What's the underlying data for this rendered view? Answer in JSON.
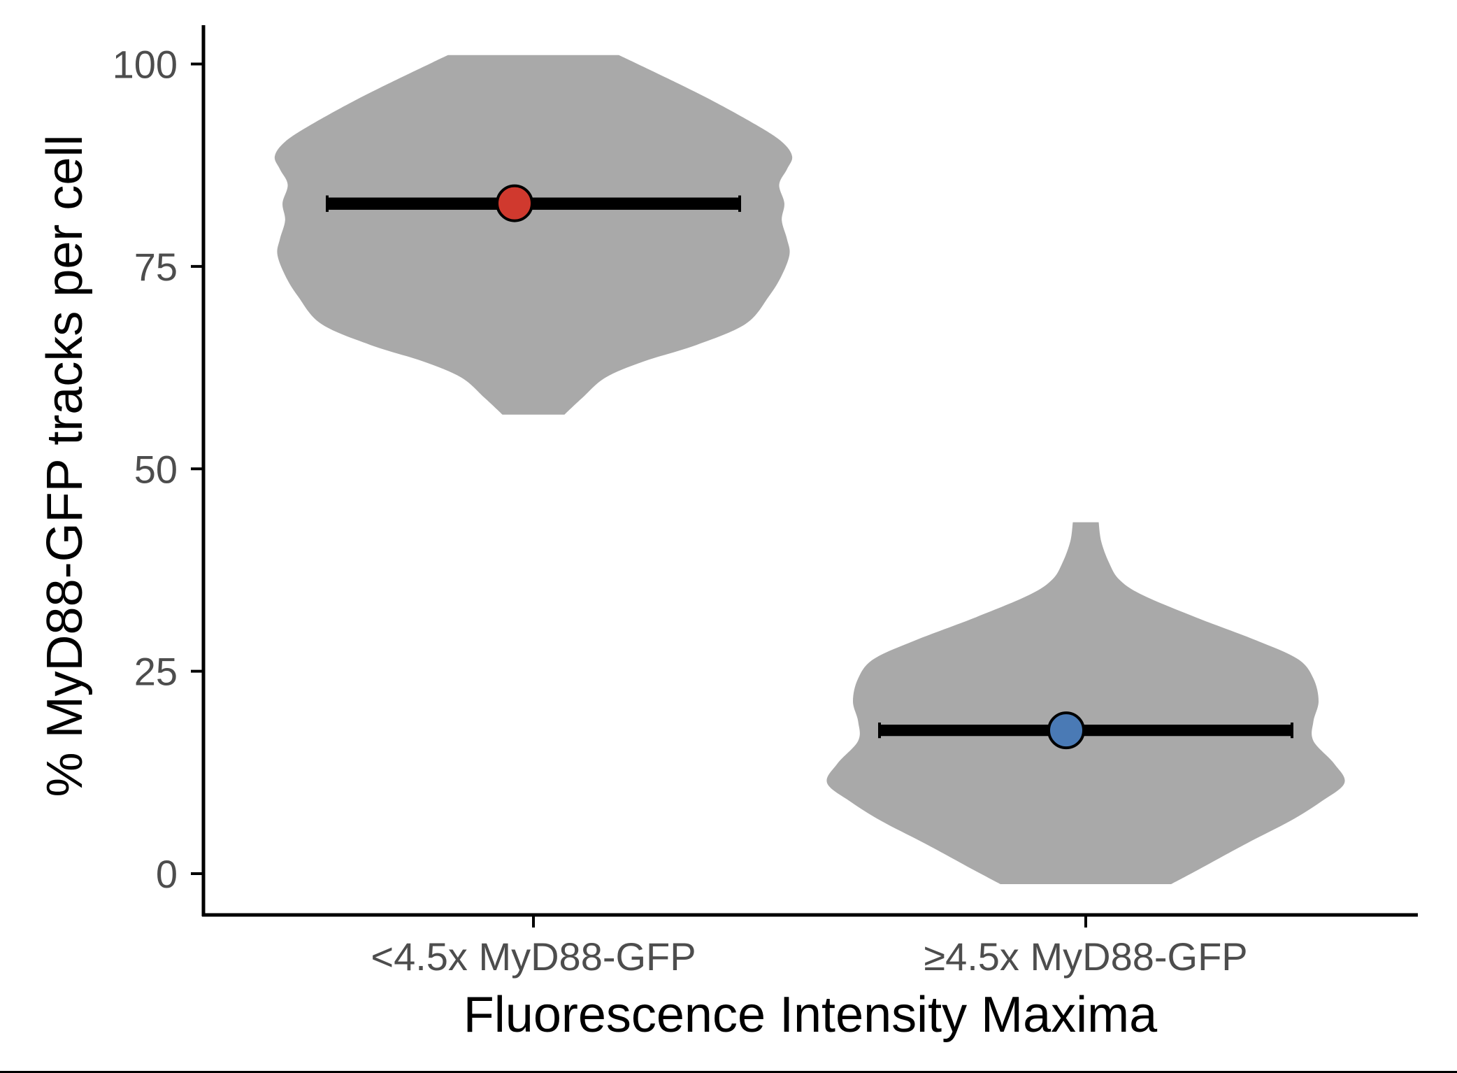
{
  "chart_data": {
    "type": "violin",
    "xlabel": "Fluorescence Intensity Maxima",
    "ylabel": "% MyD88-GFP tracks per cell",
    "ylim": [
      -10,
      105
    ],
    "yticks": [
      0,
      25,
      50,
      75,
      100
    ],
    "categories": [
      "<4.5x MyD88-GFP",
      "≥4.5x MyD88-GFP"
    ],
    "grid": false,
    "violins": [
      {
        "category": "<4.5x MyD88-GFP",
        "min": 56.7,
        "max": 101.1,
        "mean": 82.8,
        "error_low": 82.6,
        "error_high": 82.9,
        "point_color": "#d0392e",
        "profile": [
          [
            56.7,
            0.12
          ],
          [
            58.8,
            0.19
          ],
          [
            61.3,
            0.28
          ],
          [
            63.3,
            0.43
          ],
          [
            65.3,
            0.63
          ],
          [
            67.9,
            0.82
          ],
          [
            71.3,
            0.91
          ],
          [
            73.9,
            0.96
          ],
          [
            76.5,
            0.99
          ],
          [
            78.4,
            0.98
          ],
          [
            80.7,
            0.96
          ],
          [
            82.8,
            0.97
          ],
          [
            85.1,
            0.95
          ],
          [
            87.0,
            0.98
          ],
          [
            88.6,
            1.0
          ],
          [
            90.4,
            0.96
          ],
          [
            92.5,
            0.86
          ],
          [
            95.5,
            0.69
          ],
          [
            98.2,
            0.52
          ],
          [
            100.2,
            0.39
          ],
          [
            101.1,
            0.33
          ]
        ]
      },
      {
        "category": "≥4.5x MyD88-GFP",
        "min": -1.3,
        "max": 43.4,
        "mean": 17.7,
        "error_low": 17.6,
        "error_high": 17.8,
        "point_color": "#4a7ab5",
        "profile": [
          [
            -1.3,
            0.33
          ],
          [
            0.4,
            0.43
          ],
          [
            3.7,
            0.62
          ],
          [
            6.5,
            0.79
          ],
          [
            8.9,
            0.91
          ],
          [
            11.2,
            1.0
          ],
          [
            13.6,
            0.96
          ],
          [
            16.4,
            0.88
          ],
          [
            18.8,
            0.88
          ],
          [
            21.3,
            0.9
          ],
          [
            24.1,
            0.88
          ],
          [
            26.5,
            0.82
          ],
          [
            28.8,
            0.66
          ],
          [
            31.6,
            0.43
          ],
          [
            34.4,
            0.22
          ],
          [
            36.3,
            0.13
          ],
          [
            38.4,
            0.09
          ],
          [
            41.0,
            0.06
          ],
          [
            43.4,
            0.05
          ]
        ]
      }
    ]
  },
  "colors": {
    "violin_fill": "#a9a9a9",
    "axis": "#000000",
    "tick_text": "#4d4d4d",
    "title_text": "#000000"
  }
}
